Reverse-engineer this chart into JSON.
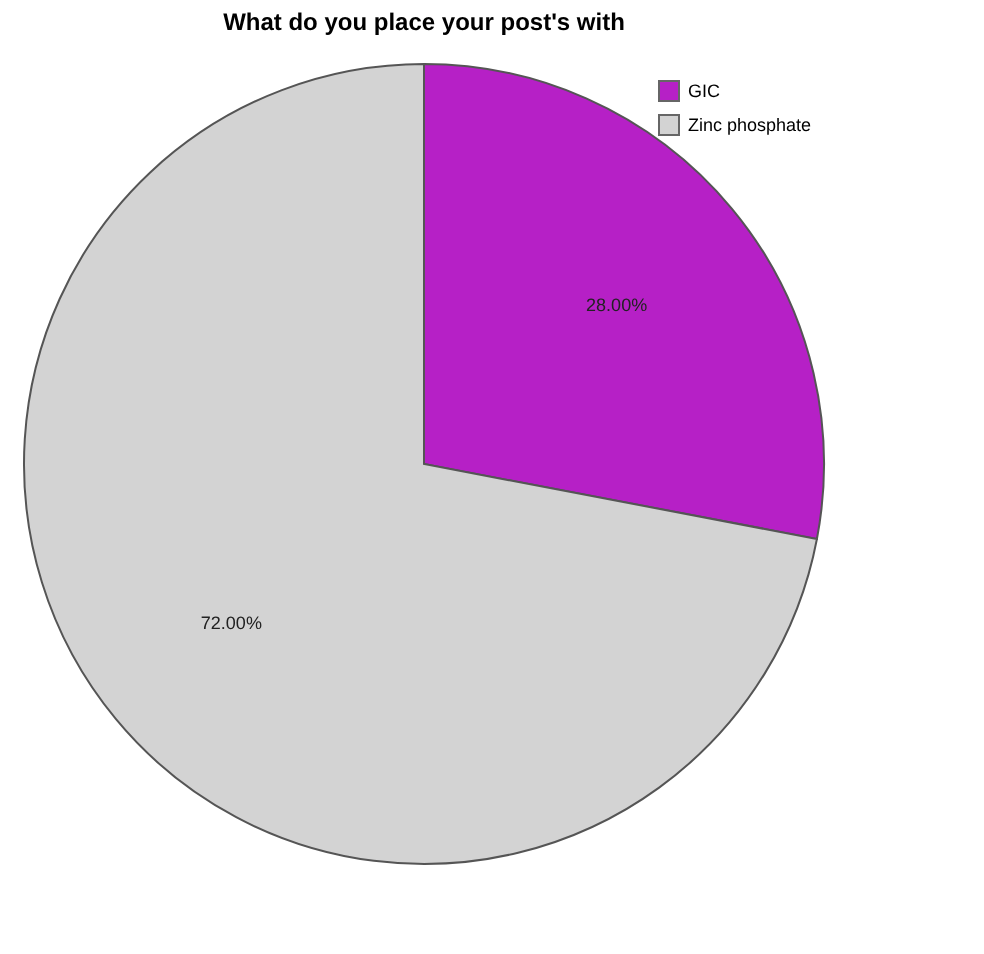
{
  "chart_data": {
    "type": "pie",
    "title": "What do you place your post's with",
    "categories": [
      "GIC",
      "Zinc phosphate"
    ],
    "values": [
      28,
      72
    ],
    "colors": [
      "#b620c6",
      "#d3d3d3"
    ],
    "value_labels": [
      "28.00%",
      "72.00%"
    ],
    "legend": "top right"
  }
}
